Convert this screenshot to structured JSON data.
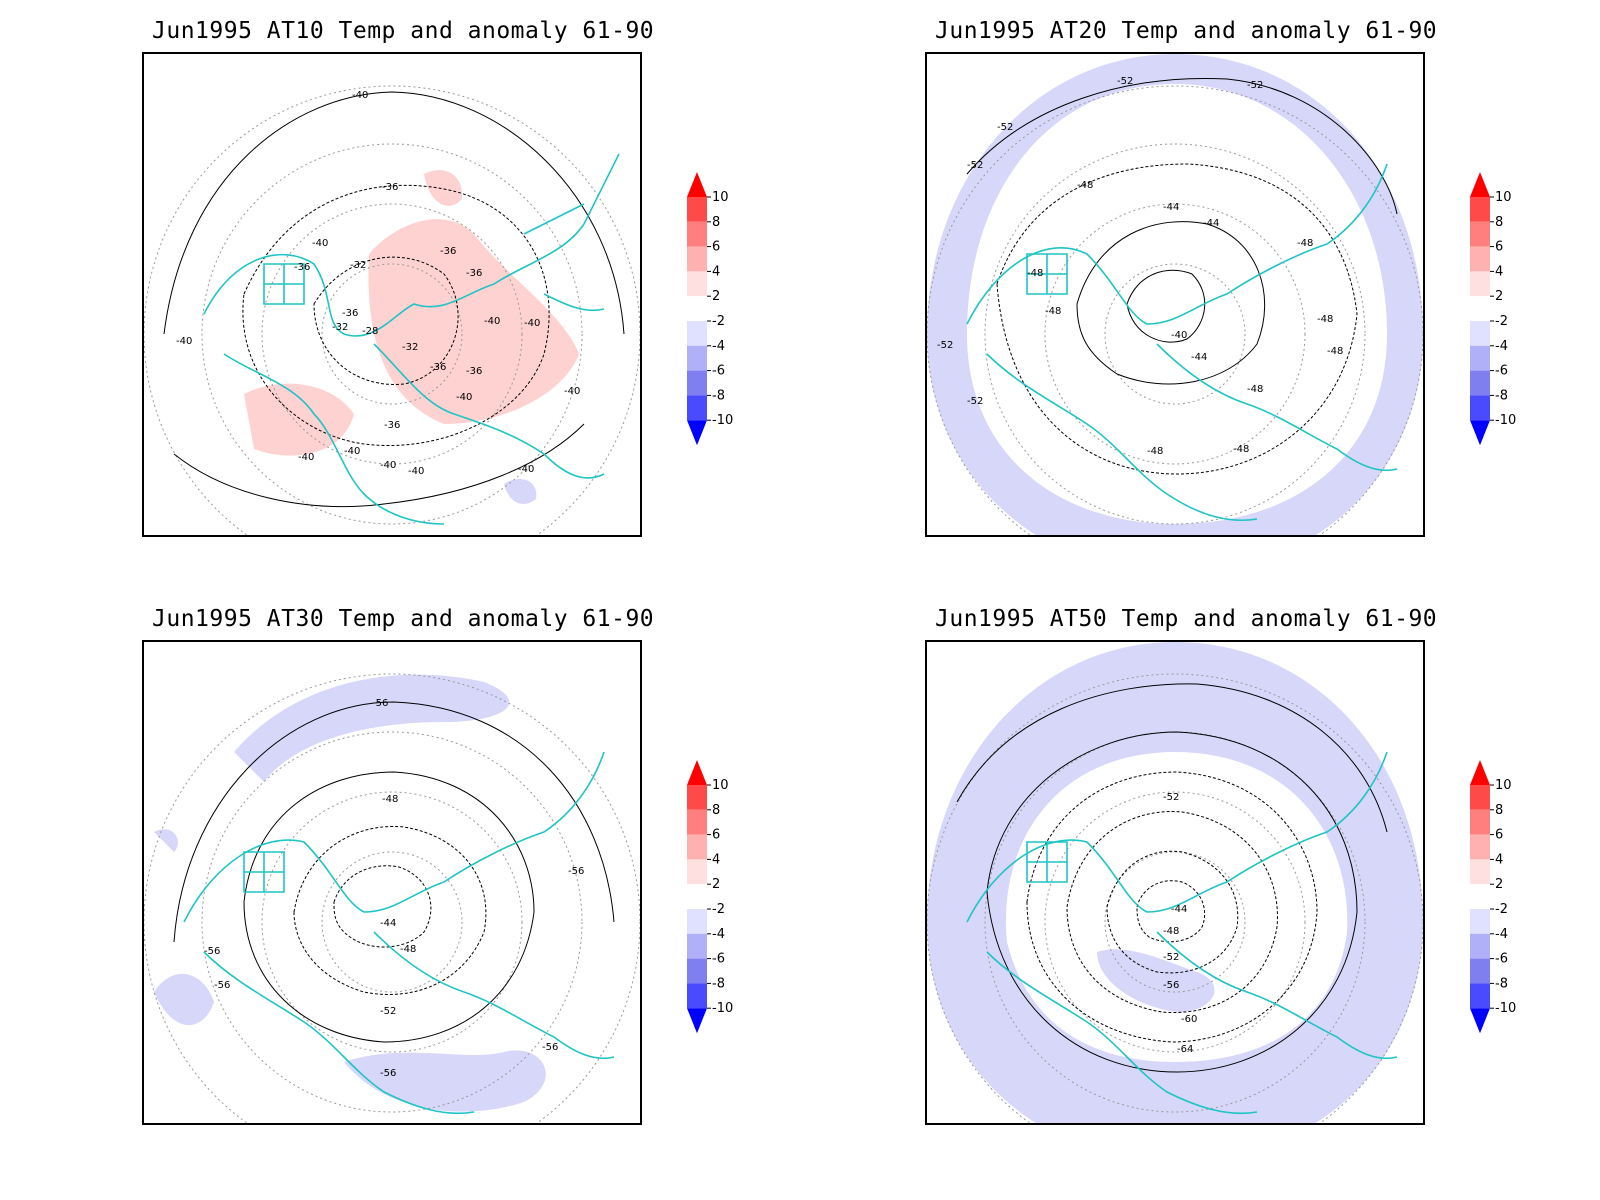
{
  "panels": [
    {
      "title": "Jun1995 AT10 Temp and anomaly 61-90",
      "contour_labels": [
        "-40",
        "-36",
        "-36",
        "-40",
        "-40",
        "-36",
        "-32",
        "-36",
        "-32",
        "-28",
        "-36",
        "-32",
        "-36",
        "-36",
        "-40",
        "-40",
        "-40",
        "-36",
        "-40",
        "-40",
        "-40",
        "-40",
        "-40",
        "-40"
      ]
    },
    {
      "title": "Jun1995 AT20 Temp and anomaly 61-90",
      "contour_labels": [
        "-52",
        "-52",
        "-52",
        "-52",
        "-48",
        "-44",
        "-44",
        "-48",
        "-48",
        "-48",
        "-48",
        "-40",
        "-44",
        "-48",
        "-48",
        "-52",
        "-52",
        "-48",
        "-48"
      ]
    },
    {
      "title": "Jun1995 AT30 Temp and anomaly 61-90",
      "contour_labels": [
        "-56",
        "-48",
        "-44",
        "-48",
        "-56",
        "-56",
        "-56",
        "-52",
        "-56",
        "-56"
      ]
    },
    {
      "title": "Jun1995 AT50 Temp and anomaly 61-90",
      "contour_labels": [
        "-52",
        "-44",
        "-48",
        "-52",
        "-56",
        "-60",
        "-64"
      ]
    }
  ],
  "colorbar": {
    "ticks": [
      "10",
      "8",
      "6",
      "4",
      "2",
      "-2",
      "-4",
      "-6",
      "-8",
      "-10"
    ],
    "colors": [
      "#ff0000",
      "#ff4a4a",
      "#ff7f7f",
      "#ffb0b0",
      "#ffe0e0",
      "#ffffff",
      "#e0e0ff",
      "#b0b0f8",
      "#7f7ff0",
      "#4a4aff",
      "#0000ff"
    ]
  },
  "colors": {
    "coast": "#1fc4c4",
    "contour": "#000000",
    "grid": "#888888",
    "warm_fill": "#ffd2d2",
    "cold_fill": "#d7d7fa"
  }
}
